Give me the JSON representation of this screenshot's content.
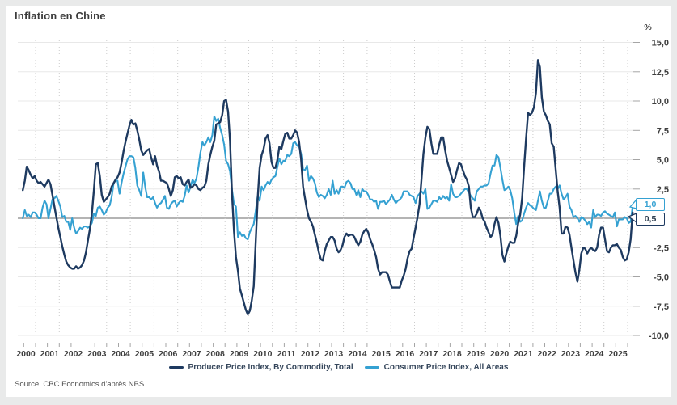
{
  "page": {
    "title": "Inflation en Chine",
    "unit_label": "%",
    "source": "Source: CBC Economics d'après NBS"
  },
  "colors": {
    "ppi_line": "#1e3a60",
    "cpi_line": "#35a1d2",
    "title_text": "#3b3b3b",
    "axis_text": "#3e3e3e",
    "legend_text": "#36475c",
    "zero_line": "#9c9c9c",
    "h_gridline": "#e8e8e8",
    "v_gridline": "#cccccc",
    "tick": "#a5a5a5",
    "card_bg": "#ffffff",
    "page_bg": "#e9eaea"
  },
  "axis": {
    "y_ticks": [
      {
        "value": 15,
        "label": "15,0"
      },
      {
        "value": 12.5,
        "label": "12,5"
      },
      {
        "value": 10,
        "label": "10,0"
      },
      {
        "value": 7.5,
        "label": "7,5"
      },
      {
        "value": 5,
        "label": "5,0"
      },
      {
        "value": 2.5,
        "label": "2,5"
      },
      {
        "value": 0,
        "label": ""
      },
      {
        "value": -2.5,
        "label": "-2,5"
      },
      {
        "value": -5,
        "label": "-5,0"
      },
      {
        "value": -7.5,
        "label": "-7,5"
      },
      {
        "value": -10,
        "label": "-10,0"
      }
    ],
    "years": [
      "2000",
      "2001",
      "2002",
      "2003",
      "2004",
      "2005",
      "2006",
      "2007",
      "2008",
      "2009",
      "2010",
      "2011",
      "2012",
      "2013",
      "2014",
      "2015",
      "2016",
      "2017",
      "2018",
      "2019",
      "2020",
      "2021",
      "2022",
      "2023",
      "2024",
      "2025"
    ]
  },
  "callouts": [
    {
      "series": "Consumer Price Index, All Areas",
      "label": "1,0",
      "value": 1.0
    },
    {
      "series": "Producer Price Index, By Commodity, Total",
      "label": "0,5",
      "value": 0.5
    }
  ],
  "chart_data": {
    "type": "line",
    "title": "Inflation en Chine",
    "ylabel": "%",
    "ylim": [
      -10,
      15
    ],
    "ytick_step": 2.5,
    "x_start": "2000-01",
    "x_end": "2025-10",
    "frequency": "monthly",
    "grid": true,
    "legend_position": "bottom",
    "series": [
      {
        "name": "Producer Price Index, By Commodity, Total",
        "color": "#1e3a60",
        "last_value": 0.5,
        "values": [
          2.4,
          3.2,
          4.4,
          4.1,
          3.7,
          3.4,
          3.6,
          3.2,
          3.0,
          3.1,
          2.9,
          2.7,
          3.0,
          3.3,
          2.9,
          2.0,
          1.0,
          0.1,
          -0.8,
          -1.6,
          -2.4,
          -3.1,
          -3.7,
          -4.0,
          -4.2,
          -4.3,
          -4.3,
          -4.1,
          -4.3,
          -4.2,
          -4.0,
          -3.6,
          -2.9,
          -1.9,
          -0.9,
          0.4,
          2.4,
          4.6,
          4.7,
          3.6,
          2.0,
          1.4,
          1.6,
          1.8,
          2.1,
          2.7,
          3.0,
          3.3,
          3.5,
          3.9,
          4.7,
          5.7,
          6.5,
          7.2,
          7.9,
          8.4,
          8.0,
          8.1,
          7.5,
          6.7,
          5.8,
          5.4,
          5.6,
          5.8,
          5.9,
          5.2,
          4.6,
          5.3,
          4.5,
          4.0,
          3.2,
          3.2,
          3.1,
          3.0,
          2.5,
          1.9,
          2.4,
          3.5,
          3.6,
          3.4,
          3.5,
          2.9,
          2.8,
          3.1,
          3.3,
          2.6,
          2.7,
          2.9,
          2.8,
          2.5,
          2.4,
          2.6,
          2.7,
          3.2,
          4.6,
          5.4,
          6.1,
          6.6,
          8.0,
          8.1,
          8.2,
          8.8,
          10.0,
          10.1,
          9.1,
          6.6,
          2.0,
          -1.1,
          -3.3,
          -4.5,
          -6.0,
          -6.6,
          -7.2,
          -7.8,
          -8.2,
          -7.9,
          -7.0,
          -5.8,
          -2.1,
          1.7,
          4.3,
          5.4,
          5.9,
          6.8,
          7.1,
          6.4,
          4.8,
          4.3,
          4.3,
          5.0,
          6.1,
          5.9,
          6.6,
          7.2,
          7.3,
          6.8,
          6.8,
          7.1,
          7.5,
          7.3,
          6.5,
          5.0,
          2.7,
          1.7,
          0.7,
          0.0,
          -0.3,
          -0.7,
          -1.4,
          -2.1,
          -2.9,
          -3.5,
          -3.6,
          -2.8,
          -2.2,
          -1.9,
          -1.6,
          -1.6,
          -1.9,
          -2.6,
          -2.9,
          -2.7,
          -2.3,
          -1.6,
          -1.3,
          -1.5,
          -1.4,
          -1.4,
          -1.6,
          -2.0,
          -2.3,
          -2.0,
          -1.4,
          -1.1,
          -0.9,
          -1.2,
          -1.8,
          -2.2,
          -2.7,
          -3.3,
          -4.3,
          -4.8,
          -4.6,
          -4.6,
          -4.6,
          -4.8,
          -5.4,
          -5.9,
          -5.9,
          -5.9,
          -5.9,
          -5.9,
          -5.3,
          -4.9,
          -4.3,
          -3.4,
          -2.8,
          -2.6,
          -1.7,
          -0.8,
          0.1,
          1.2,
          3.3,
          5.5,
          6.9,
          7.8,
          7.6,
          6.4,
          5.5,
          5.5,
          5.5,
          6.3,
          6.9,
          6.9,
          5.8,
          4.9,
          4.3,
          3.7,
          3.1,
          3.4,
          4.1,
          4.7,
          4.6,
          4.1,
          3.6,
          3.3,
          2.7,
          0.9,
          0.1,
          0.1,
          0.4,
          0.9,
          0.6,
          0.0,
          -0.3,
          -0.8,
          -1.2,
          -1.6,
          -1.4,
          -0.5,
          0.1,
          -0.4,
          -1.5,
          -3.1,
          -3.7,
          -3.0,
          -2.4,
          -2.0,
          -2.1,
          -2.1,
          -1.5,
          -0.4,
          0.3,
          1.7,
          4.4,
          6.8,
          9.0,
          8.8,
          9.0,
          9.5,
          10.7,
          13.5,
          12.9,
          10.3,
          9.1,
          8.8,
          8.3,
          8.0,
          6.4,
          6.1,
          4.2,
          2.3,
          0.9,
          -1.3,
          -1.3,
          -0.7,
          -0.8,
          -1.4,
          -2.5,
          -3.6,
          -4.6,
          -5.4,
          -4.4,
          -3.0,
          -2.5,
          -2.6,
          -3.0,
          -2.7,
          -2.5,
          -2.7,
          -2.8,
          -2.5,
          -1.4,
          -0.8,
          -0.8,
          -1.8,
          -2.8,
          -2.9,
          -2.5,
          -2.3,
          -2.3,
          -2.2,
          -2.5,
          -2.7,
          -3.3,
          -3.6,
          -3.5,
          -2.9,
          -1.8,
          0.5
        ]
      },
      {
        "name": "Consumer Price Index, All Areas",
        "color": "#35a1d2",
        "last_value": 1.0,
        "values": [
          0.0,
          0.7,
          0.2,
          0.3,
          0.1,
          0.5,
          0.5,
          0.3,
          0.0,
          0.0,
          0.9,
          1.5,
          1.2,
          0.0,
          0.8,
          1.6,
          1.7,
          1.9,
          1.5,
          1.0,
          0.1,
          0.2,
          -0.3,
          -0.3,
          -1.0,
          0.0,
          -0.8,
          -1.3,
          -1.1,
          -0.8,
          -0.9,
          -0.7,
          -0.7,
          -0.8,
          -0.7,
          -0.4,
          0.4,
          0.2,
          0.9,
          1.0,
          0.7,
          0.3,
          0.5,
          0.9,
          1.1,
          1.8,
          3.0,
          3.2,
          3.2,
          2.1,
          3.0,
          3.8,
          4.4,
          5.0,
          5.3,
          5.3,
          5.2,
          4.3,
          2.8,
          2.4,
          1.9,
          3.9,
          2.7,
          1.8,
          1.8,
          1.6,
          1.8,
          1.3,
          0.9,
          1.2,
          1.3,
          1.6,
          1.9,
          0.9,
          0.8,
          1.2,
          1.4,
          1.5,
          1.0,
          1.3,
          1.5,
          1.4,
          1.9,
          2.8,
          2.2,
          2.7,
          3.3,
          3.0,
          3.4,
          4.4,
          5.6,
          6.5,
          6.2,
          6.5,
          6.9,
          6.5,
          7.1,
          8.7,
          8.3,
          8.5,
          7.7,
          7.1,
          6.3,
          4.9,
          4.6,
          4.0,
          2.4,
          1.2,
          1.0,
          -1.6,
          -1.2,
          -1.5,
          -1.4,
          -1.7,
          -1.8,
          -1.2,
          -0.8,
          -0.5,
          0.6,
          1.9,
          1.5,
          2.7,
          2.4,
          2.8,
          3.1,
          2.9,
          3.3,
          3.5,
          3.6,
          4.4,
          5.1,
          4.6,
          4.9,
          4.9,
          5.4,
          5.3,
          5.5,
          6.4,
          6.5,
          6.2,
          6.1,
          5.5,
          4.2,
          4.1,
          4.5,
          3.2,
          3.6,
          3.4,
          3.0,
          2.2,
          1.8,
          2.0,
          1.9,
          1.7,
          2.0,
          2.5,
          2.0,
          3.2,
          2.1,
          2.4,
          2.1,
          2.7,
          2.7,
          2.6,
          3.1,
          3.2,
          3.0,
          2.5,
          2.5,
          2.0,
          2.4,
          1.8,
          2.5,
          2.3,
          2.3,
          2.0,
          1.6,
          1.6,
          1.4,
          1.5,
          0.8,
          1.4,
          1.4,
          1.5,
          1.2,
          1.4,
          1.6,
          2.0,
          1.6,
          1.3,
          1.5,
          1.6,
          1.8,
          2.3,
          2.3,
          2.3,
          2.0,
          1.9,
          1.8,
          1.3,
          1.9,
          2.1,
          2.3,
          2.1,
          2.5,
          0.8,
          0.9,
          1.2,
          1.5,
          1.5,
          1.4,
          1.8,
          1.6,
          1.9,
          1.7,
          1.8,
          1.5,
          2.9,
          2.1,
          1.8,
          1.8,
          1.9,
          2.1,
          2.3,
          2.5,
          2.5,
          2.2,
          1.9,
          1.7,
          1.5,
          2.3,
          2.5,
          2.7,
          2.7,
          2.8,
          2.8,
          3.0,
          3.8,
          4.5,
          4.5,
          5.4,
          5.2,
          4.3,
          3.3,
          2.4,
          2.5,
          2.7,
          2.4,
          1.7,
          0.5,
          -0.5,
          0.2,
          -0.3,
          -0.2,
          0.4,
          0.9,
          1.3,
          1.1,
          1.0,
          0.8,
          0.7,
          1.5,
          2.3,
          1.5,
          0.9,
          0.9,
          1.5,
          2.1,
          2.1,
          2.5,
          2.7,
          2.5,
          2.8,
          2.1,
          1.6,
          1.8,
          2.1,
          1.0,
          0.7,
          0.1,
          0.2,
          0.0,
          -0.3,
          0.1,
          0.0,
          -0.2,
          -0.5,
          -0.3,
          -0.8,
          0.7,
          0.1,
          0.3,
          0.3,
          0.2,
          0.5,
          0.6,
          0.4,
          0.3,
          0.2,
          0.1,
          0.5,
          -0.7,
          -0.1,
          -0.1,
          -0.1,
          0.1,
          0.0,
          -0.4,
          -0.3,
          1.0
        ]
      }
    ]
  }
}
